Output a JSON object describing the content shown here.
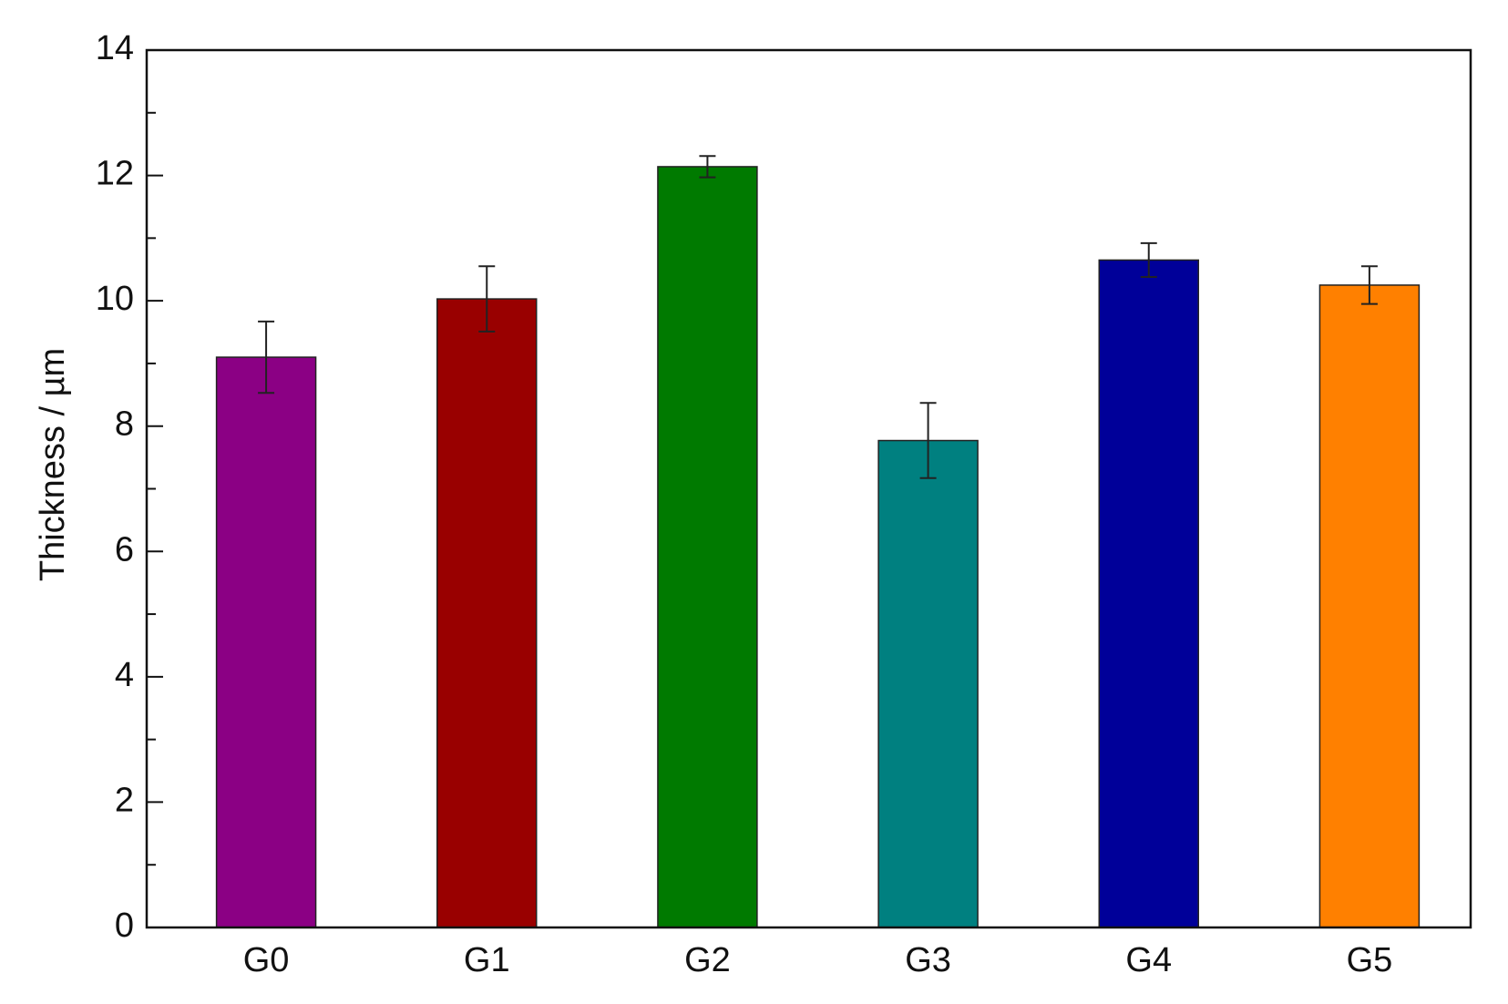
{
  "chart_data": {
    "type": "bar",
    "ylabel": "Thickness / µm",
    "categories": [
      "G0",
      "G1",
      "G2",
      "G3",
      "G4",
      "G5"
    ],
    "values": [
      9.1,
      10.03,
      12.14,
      7.77,
      10.65,
      10.25
    ],
    "errors": [
      0.57,
      0.52,
      0.17,
      0.6,
      0.27,
      0.3
    ],
    "colors": [
      "#8b0084",
      "#990000",
      "#007a00",
      "#008080",
      "#000099",
      "#ff8000"
    ],
    "ylim": [
      0,
      14
    ],
    "yticks": [
      0,
      2,
      4,
      6,
      8,
      10,
      12,
      14
    ],
    "grid": false
  }
}
